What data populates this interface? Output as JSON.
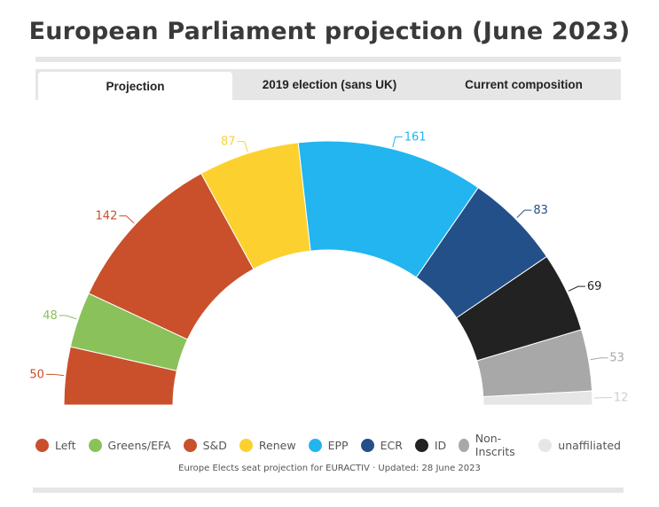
{
  "title": "European Parliament projection (June 2023)",
  "tabs": [
    {
      "label": "Projection",
      "active": true
    },
    {
      "label": "2019 election (sans UK)",
      "active": false
    },
    {
      "label": "Current composition",
      "active": false
    }
  ],
  "source": "Europe Elects seat projection for EURACTIV · Updated: 28 June 2023",
  "chart_data": {
    "type": "pie",
    "subtype": "semicircle-parliament",
    "categories": [
      "Left",
      "Greens/EFA",
      "S&D",
      "Renew",
      "EPP",
      "ECR",
      "ID",
      "Non-Inscrits",
      "unaffiliated"
    ],
    "values": [
      50,
      48,
      142,
      87,
      161,
      83,
      69,
      53,
      12
    ],
    "colors": [
      "#c9502b",
      "#8bc15a",
      "#c9502b",
      "#fcd12f",
      "#22b5ef",
      "#245089",
      "#222222",
      "#a8a8a8",
      "#e6e6e6"
    ],
    "label_colors": [
      "#c9502b",
      "#8bc15a",
      "#c9502b",
      "#fcd12f",
      "#22b5ef",
      "#245089",
      "#222222",
      "#a8a8a8",
      "#cfcfcf"
    ],
    "legend_position": "bottom"
  }
}
